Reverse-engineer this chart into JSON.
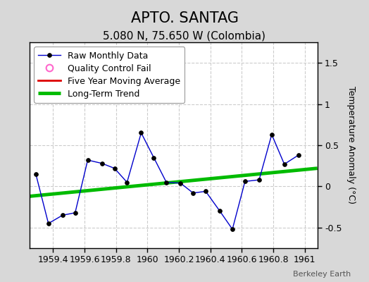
{
  "title": "APTO. SANTAG",
  "subtitle": "5.080 N, 75.650 W (Colombia)",
  "watermark": "Berkeley Earth",
  "ylabel": "Temperature Anomaly (°C)",
  "xlim": [
    1959.25,
    1961.08
  ],
  "ylim": [
    -0.75,
    1.75
  ],
  "yticks": [
    -0.5,
    0,
    0.5,
    1,
    1.5
  ],
  "xticks": [
    1959.4,
    1959.6,
    1959.8,
    1960.0,
    1960.2,
    1960.4,
    1960.6,
    1960.8,
    1961.0
  ],
  "raw_x": [
    1959.29,
    1959.37,
    1959.46,
    1959.54,
    1959.62,
    1959.71,
    1959.79,
    1959.87,
    1959.96,
    1960.04,
    1960.12,
    1960.21,
    1960.29,
    1960.37,
    1960.46,
    1960.54,
    1960.62,
    1960.71,
    1960.79,
    1960.87,
    1960.96
  ],
  "raw_y": [
    0.15,
    -0.45,
    -0.35,
    -0.32,
    0.32,
    0.28,
    0.22,
    0.05,
    0.65,
    0.35,
    0.05,
    0.04,
    -0.08,
    -0.06,
    -0.3,
    -0.52,
    0.06,
    0.08,
    0.63,
    0.27,
    0.38
  ],
  "trend_x": [
    1959.25,
    1961.08
  ],
  "trend_y": [
    -0.12,
    0.22
  ],
  "raw_color": "#0000cc",
  "raw_markersize": 4,
  "raw_linewidth": 1.0,
  "trend_color": "#00bb00",
  "trend_linewidth": 3.5,
  "ma_color": "#dd0000",
  "qc_color": "#ff66cc",
  "bg_color": "#d8d8d8",
  "plot_bg_color": "#ffffff",
  "grid_color": "#cccccc",
  "legend_fontsize": 9,
  "title_fontsize": 15,
  "subtitle_fontsize": 11
}
